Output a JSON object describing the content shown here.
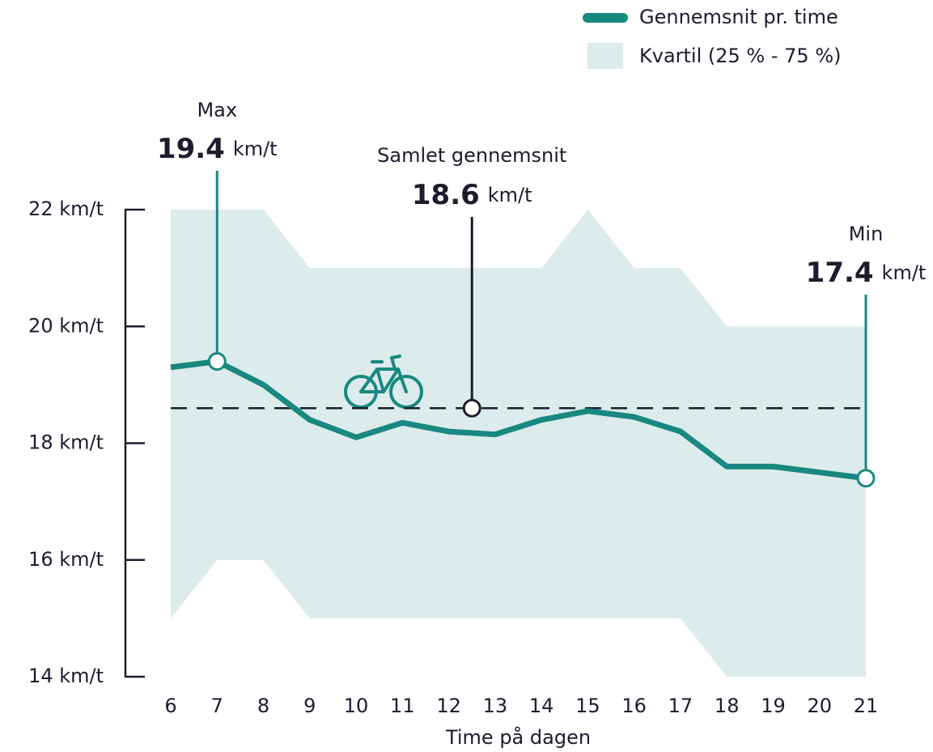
{
  "chart_data": {
    "type": "line",
    "x": [
      6,
      7,
      8,
      9,
      10,
      11,
      12,
      13,
      14,
      15,
      16,
      17,
      18,
      19,
      20,
      21
    ],
    "series": [
      {
        "name": "Gennemsnit pr. time",
        "color": "#188880",
        "values": [
          19.3,
          19.4,
          19.0,
          18.4,
          18.1,
          18.35,
          18.2,
          18.15,
          18.4,
          18.55,
          18.45,
          18.2,
          17.6,
          17.6,
          17.5,
          17.4
        ]
      }
    ],
    "band": {
      "name": "Kvartil (25 % - 75 %)",
      "color": "#dcebeb",
      "lower": [
        15,
        16,
        16,
        15,
        15,
        15,
        15,
        15,
        15,
        15,
        15,
        15,
        14,
        14,
        14,
        14
      ],
      "upper": [
        22,
        22,
        22,
        21,
        21,
        21,
        21,
        21,
        21,
        22,
        21,
        21,
        20,
        20,
        20,
        20
      ]
    },
    "xlabel": "Time på dagen",
    "xlim": [
      6,
      21
    ],
    "ylim": [
      14,
      22
    ],
    "yticks": [
      {
        "value": 14,
        "label": "14 km/t"
      },
      {
        "value": 16,
        "label": "16 km/t"
      },
      {
        "value": 18,
        "label": "18 km/t"
      },
      {
        "value": 20,
        "label": "20 km/t"
      },
      {
        "value": 22,
        "label": "22 km/t"
      }
    ],
    "annotations": [
      {
        "label": "Max",
        "value": 19.4,
        "unit": "km/t",
        "x": 7
      },
      {
        "label": "Samlet gennemsnit",
        "value": 18.6,
        "unit": "km/t",
        "x": 12.5
      },
      {
        "label": "Min",
        "value": 17.4,
        "unit": "km/t",
        "x": 21
      }
    ],
    "legend": "top-right"
  }
}
